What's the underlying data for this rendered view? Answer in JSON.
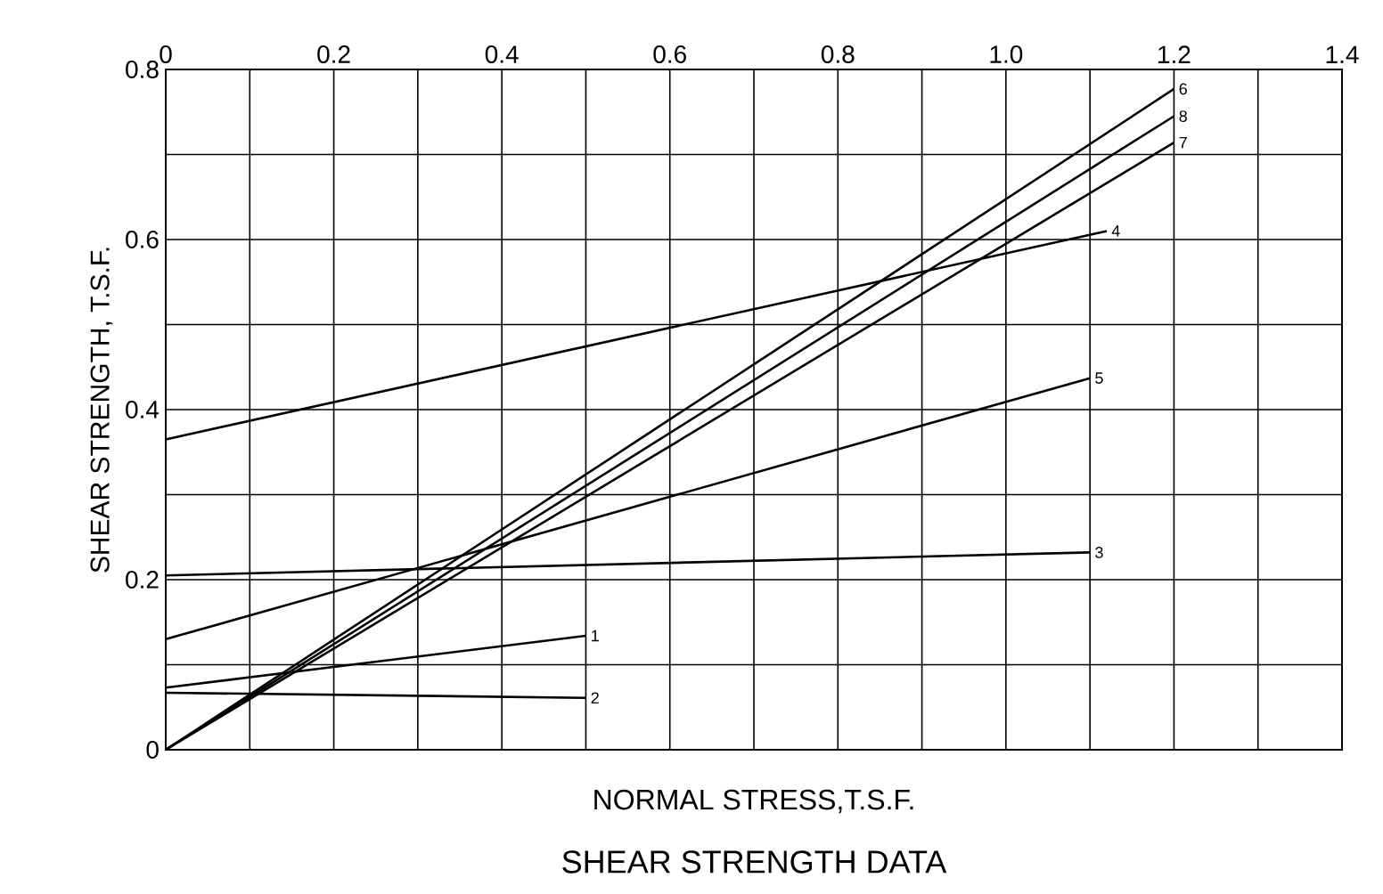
{
  "chart_data": {
    "type": "line",
    "title": "SHEAR STRENGTH DATA",
    "xlabel": "NORMAL STRESS,T.S.F.",
    "ylabel": "SHEAR STRENGTH, T.S.F.",
    "xlim": [
      0,
      1.4
    ],
    "ylim": [
      0,
      0.8
    ],
    "xticks": [
      0,
      {
        "value": 0.1,
        "label": null
      },
      0.2,
      {
        "value": 0.3,
        "label": null
      },
      0.4,
      {
        "value": 0.5,
        "label": null
      },
      0.6,
      {
        "value": 0.7,
        "label": null
      },
      0.8,
      {
        "value": 0.9,
        "label": null
      },
      {
        "value": 1.0,
        "label": "1.0"
      },
      {
        "value": 1.1,
        "label": null
      },
      1.2,
      {
        "value": 1.3,
        "label": null
      },
      1.4
    ],
    "yticks": [
      0,
      {
        "value": 0.1,
        "label": null
      },
      0.2,
      {
        "value": 0.3,
        "label": null
      },
      0.4,
      {
        "value": 0.5,
        "label": null
      },
      0.6,
      {
        "value": 0.7,
        "label": null
      },
      0.8
    ],
    "grid": true,
    "line_style": "solid",
    "series": [
      {
        "name": "1",
        "color": "#000000",
        "x": [
          0,
          0.5
        ],
        "values": [
          0.073,
          0.134
        ]
      },
      {
        "name": "2",
        "color": "#000000",
        "x": [
          0,
          0.5
        ],
        "values": [
          0.067,
          0.061
        ]
      },
      {
        "name": "3",
        "color": "#000000",
        "x": [
          0,
          1.1
        ],
        "values": [
          0.205,
          0.232
        ]
      },
      {
        "name": "4",
        "color": "#000000",
        "x": [
          0,
          1.12
        ],
        "values": [
          0.365,
          0.61
        ]
      },
      {
        "name": "5",
        "color": "#000000",
        "x": [
          0,
          1.1
        ],
        "values": [
          0.13,
          0.437
        ]
      },
      {
        "name": "6",
        "color": "#000000",
        "x": [
          0,
          1.2
        ],
        "values": [
          0,
          0.777
        ]
      },
      {
        "name": "8",
        "color": "#000000",
        "x": [
          0,
          1.2
        ],
        "values": [
          0,
          0.745
        ]
      },
      {
        "name": "7",
        "color": "#000000",
        "x": [
          0,
          1.2
        ],
        "values": [
          0,
          0.714
        ]
      }
    ]
  }
}
